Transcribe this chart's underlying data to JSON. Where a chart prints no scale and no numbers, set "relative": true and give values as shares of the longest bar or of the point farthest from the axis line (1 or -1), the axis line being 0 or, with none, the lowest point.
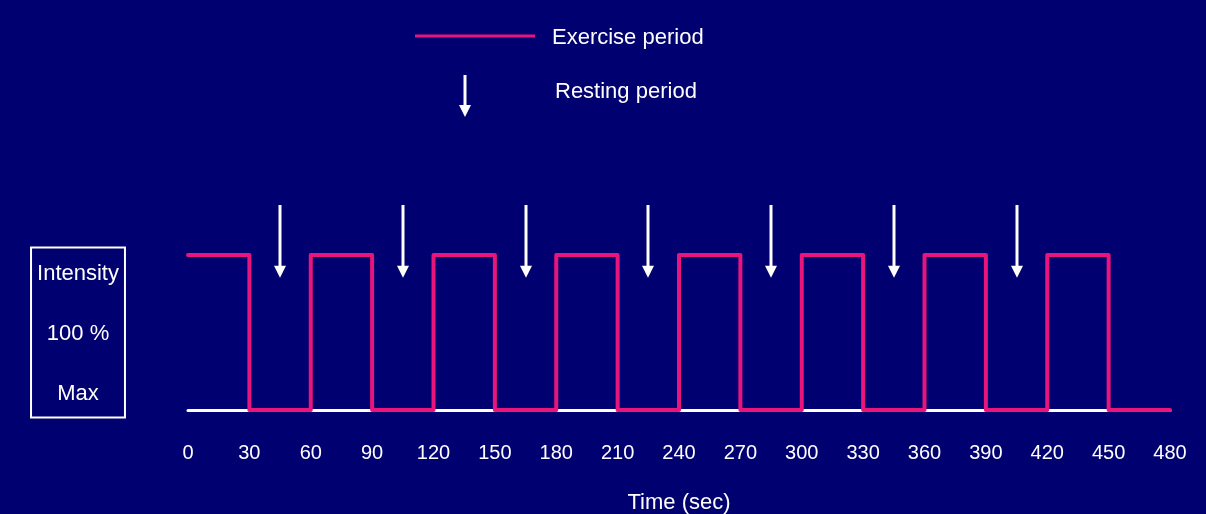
{
  "chart_data": {
    "type": "step",
    "relative": true,
    "xlabel": "Time (sec)",
    "ylabel": "Intensity\n100 %\nMax",
    "x": [
      0,
      30,
      60,
      90,
      120,
      150,
      180,
      210,
      240,
      270,
      300,
      330,
      360,
      390,
      420,
      450,
      480
    ],
    "xlim": [
      0,
      480
    ],
    "xticks": [
      0,
      30,
      60,
      90,
      120,
      150,
      180,
      210,
      240,
      270,
      300,
      330,
      360,
      390,
      420,
      450,
      480
    ],
    "series": [
      {
        "name": "Exercise period",
        "color": "#e8157d",
        "values": [
          1,
          0,
          1,
          0,
          1,
          0,
          1,
          0,
          1,
          0,
          1,
          0,
          1,
          0,
          1,
          0,
          0
        ]
      }
    ],
    "legend": "top",
    "grid": false,
    "marker": "none",
    "line_style": "solid",
    "annotations": [
      "Resting period"
    ]
  }
}
